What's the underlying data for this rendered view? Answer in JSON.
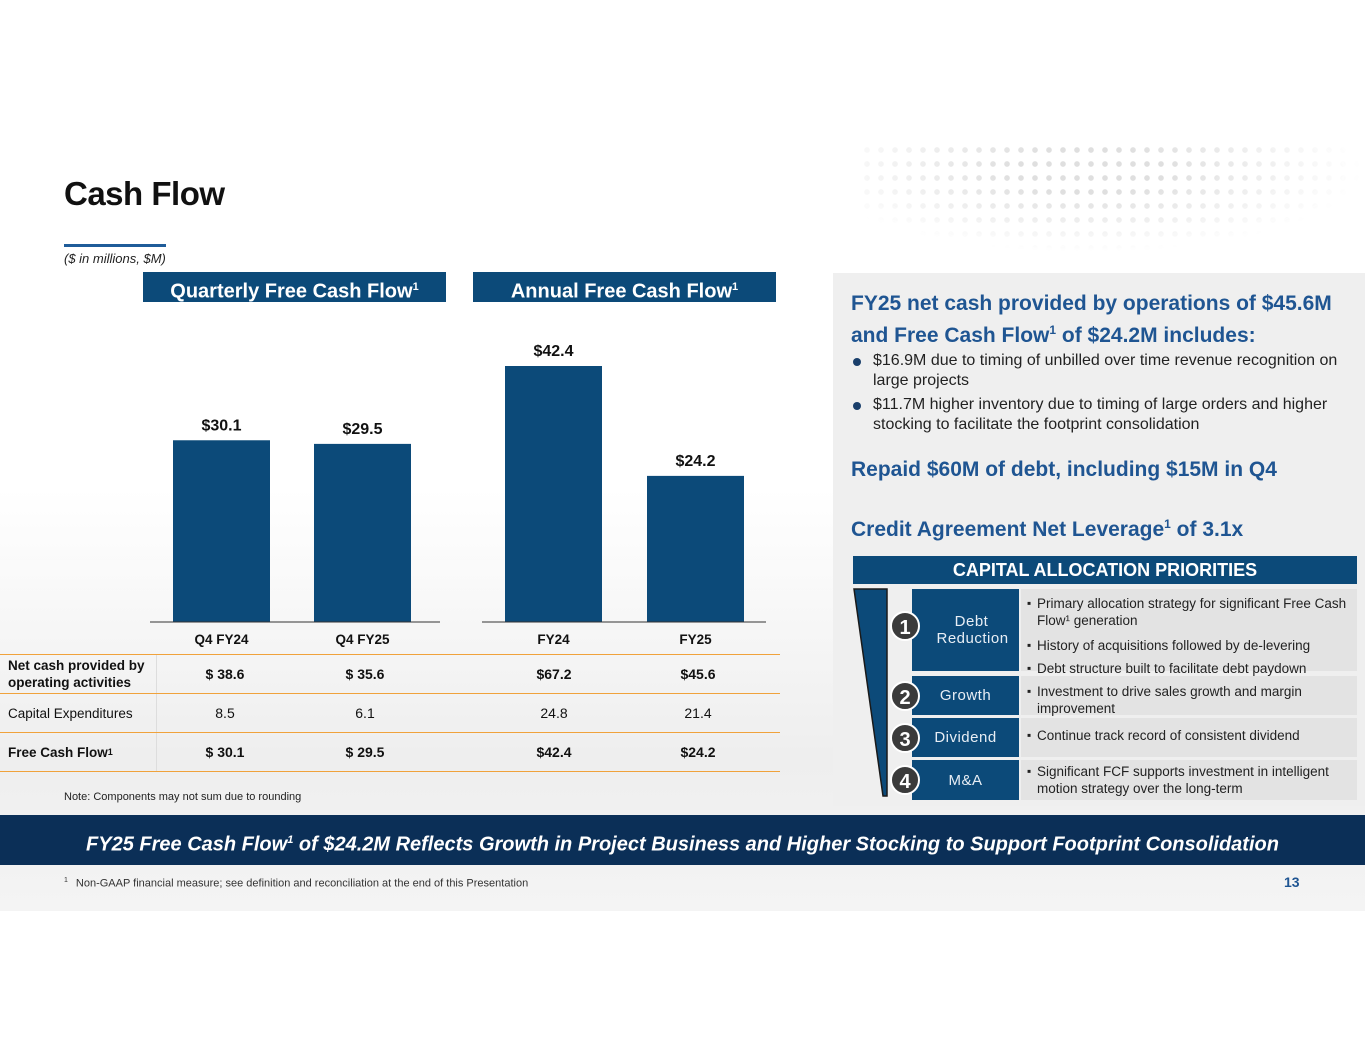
{
  "title": "Cash Flow",
  "units_note": "($ in millions, $M)",
  "chart_headers": {
    "quarterly": "Quarterly Free Cash Flow",
    "annual": "Annual Free Cash Flow",
    "sup": "1"
  },
  "chart_data": [
    {
      "type": "bar",
      "title": "Quarterly Free Cash Flow",
      "categories": [
        "Q4 FY24",
        "Q4 FY25"
      ],
      "values": [
        30.1,
        29.5
      ],
      "value_labels": [
        "$30.1",
        "$29.5"
      ],
      "ylabel": "$M",
      "ylim": [
        0,
        45
      ],
      "color": "#0c4a79"
    },
    {
      "type": "bar",
      "title": "Annual Free Cash Flow",
      "categories": [
        "FY24",
        "FY25"
      ],
      "values": [
        42.4,
        24.2
      ],
      "value_labels": [
        "$42.4",
        "$24.2"
      ],
      "ylabel": "$M",
      "ylim": [
        0,
        45
      ],
      "color": "#0c4a79"
    }
  ],
  "table": {
    "rows": [
      {
        "label": "Net cash provided by operating activities",
        "bold": true,
        "values": [
          "$ 38.6",
          "$ 35.6",
          "$67.2",
          "$45.6"
        ]
      },
      {
        "label": "Capital Expenditures",
        "bold": false,
        "values": [
          "8.5",
          "6.1",
          "24.8",
          "21.4"
        ]
      },
      {
        "label": "Free Cash Flow",
        "sup": "1",
        "bold": true,
        "values": [
          "$ 30.1",
          "$ 29.5",
          "$42.4",
          "$24.2"
        ]
      }
    ]
  },
  "note": "Note: Components may not sum due to rounding",
  "right": {
    "headline_part1": "FY25 net cash provided by operations of $45.6M and Free Cash Flow",
    "headline_sup": "1",
    "headline_part2": " of $24.2M includes:",
    "bullets": [
      "$16.9M due to timing of unbilled over time revenue recognition on large projects",
      "$11.7M higher inventory due to timing of large orders and higher stocking to facilitate the footprint consolidation"
    ],
    "repaid": "Repaid $60M of debt, including $15M in Q4",
    "leverage_part1": "Credit Agreement Net Leverage",
    "leverage_sup": "1",
    "leverage_part2": " of 3.1x"
  },
  "capital": {
    "heading": "CAPITAL ALLOCATION PRIORITIES",
    "priorities": [
      {
        "num": "1",
        "name": "Debt Reduction",
        "desc": [
          "Primary allocation strategy for significant Free Cash Flow¹ generation",
          "History of acquisitions followed by de-levering",
          "Debt structure built to facilitate debt paydown"
        ]
      },
      {
        "num": "2",
        "name": "Growth",
        "desc": [
          "Investment to drive sales growth and margin improvement"
        ]
      },
      {
        "num": "3",
        "name": "Dividend",
        "desc": [
          "Continue track record of consistent dividend"
        ]
      },
      {
        "num": "4",
        "name": "M&A",
        "desc": [
          "Significant FCF supports investment in intelligent motion strategy over the long-term"
        ]
      }
    ]
  },
  "banner": {
    "part1": "FY25 Free Cash Flow",
    "sup": "1",
    "part2": " of $24.2M Reflects Growth in Project Business and Higher Stocking to Support Footprint Consolidation"
  },
  "footnote": {
    "sup": "1",
    "text": "Non-GAAP financial measure; see definition and reconciliation at the end of this Presentation"
  },
  "page_number": "13"
}
